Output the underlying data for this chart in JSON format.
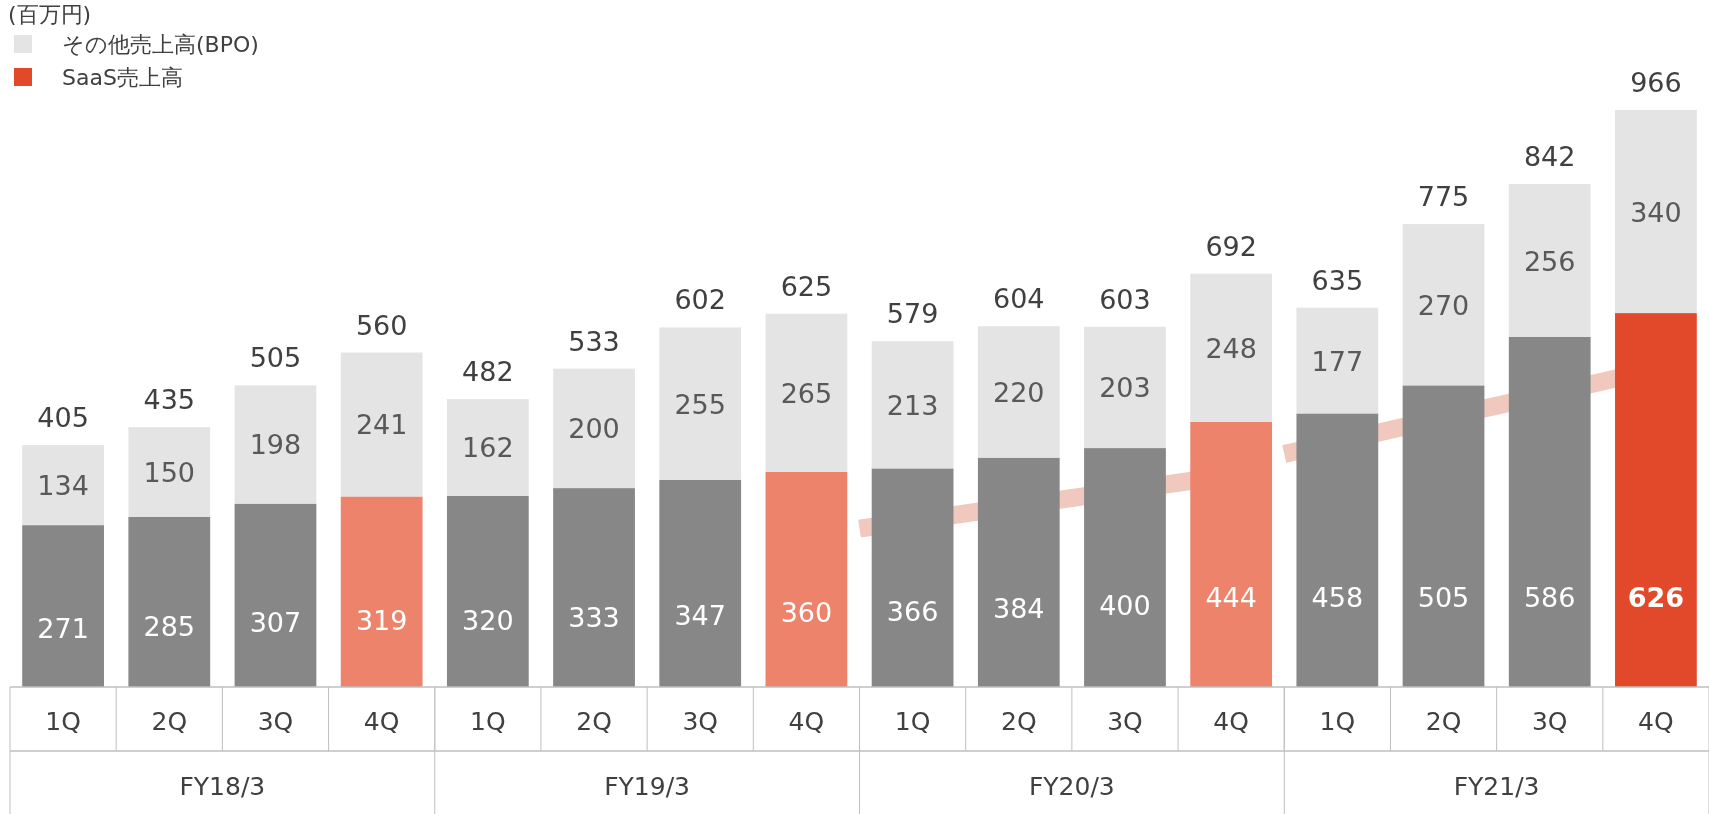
{
  "chart_data": {
    "type": "bar",
    "stacked": true,
    "data_labels": true,
    "legend": "top left",
    "ylabel": "(百万円)",
    "categories": [
      "1Q",
      "2Q",
      "3Q",
      "4Q",
      "1Q",
      "2Q",
      "3Q",
      "4Q",
      "1Q",
      "2Q",
      "3Q",
      "4Q",
      "1Q",
      "2Q",
      "3Q",
      "4Q"
    ],
    "series": [
      {
        "name": "SaaS売上高",
        "color": "#e2492a",
        "colors": [
          "#878787",
          "#878787",
          "#878787",
          "#ec836a",
          "#878787",
          "#878787",
          "#878787",
          "#ec836a",
          "#878787",
          "#878787",
          "#878787",
          "#ec836a",
          "#878787",
          "#878787",
          "#878787",
          "#e2492a"
        ],
        "values": [
          271,
          285,
          307,
          319,
          320,
          333,
          347,
          360,
          366,
          384,
          400,
          444,
          458,
          505,
          586,
          626
        ]
      },
      {
        "name": "その他売上高(BPO)",
        "color": "#e4e4e4",
        "values": [
          134,
          150,
          198,
          241,
          162,
          200,
          255,
          265,
          213,
          220,
          203,
          248,
          177,
          270,
          256,
          340
        ]
      }
    ],
    "totals": [
      "405",
      "435",
      "505",
      "560",
      "482",
      "533",
      "602",
      "625",
      "579",
      "604",
      "603",
      "692",
      "635",
      "775",
      "842",
      "966"
    ],
    "annotations": [
      "FY18/3",
      "FY19/3",
      "FY20/3",
      "FY21/3"
    ]
  }
}
